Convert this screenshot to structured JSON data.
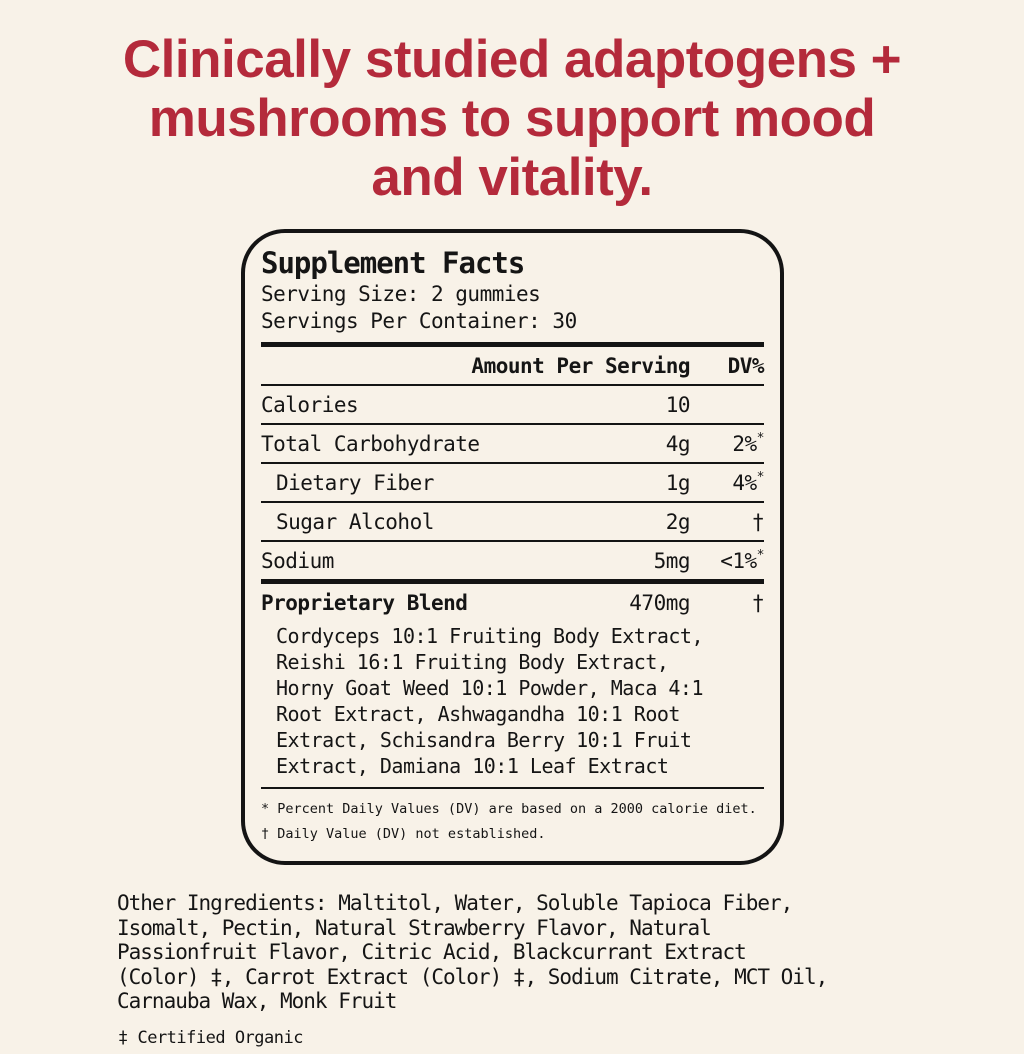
{
  "colors": {
    "background": "#f8f2e8",
    "headline_red": "#b42a3b",
    "text_black": "#151515"
  },
  "headline": {
    "line1": "Clinically studied adaptogens +",
    "line2": "mushrooms to support mood",
    "line3": "and vitality."
  },
  "panel": {
    "title": "Supplement Facts",
    "serving_size": "Serving Size: 2 gummies",
    "servings_per_container": "Servings Per Container: 30",
    "header": {
      "amount": "Amount Per Serving",
      "dv": "DV%"
    },
    "rows": [
      {
        "name": "Calories",
        "amount": "10",
        "dv": "",
        "dv_sup": ""
      },
      {
        "name": "Total Carbohydrate",
        "amount": "4g",
        "dv": "2%",
        "dv_sup": "*"
      },
      {
        "name": "Dietary Fiber",
        "amount": "1g",
        "dv": "4%",
        "dv_sup": "*"
      },
      {
        "name": "Sugar Alcohol",
        "amount": "2g",
        "dv": "†",
        "dv_sup": ""
      },
      {
        "name": "Sodium",
        "amount": "5mg",
        "dv": "<1%",
        "dv_sup": "*"
      }
    ],
    "blend": {
      "name": "Proprietary Blend",
      "amount": "470mg",
      "dv": "†",
      "lines": [
        "Cordyceps 10:1 Fruiting Body Extract,",
        "Reishi 16:1 Fruiting Body Extract,",
        "Horny Goat Weed 10:1 Powder, Maca 4:1",
        "Root Extract, Ashwagandha 10:1 Root",
        "Extract, Schisandra Berry 10:1 Fruit",
        "Extract, Damiana 10:1 Leaf Extract"
      ]
    },
    "footnotes": [
      "* Percent Daily Values (DV) are based on a 2000 calorie diet.",
      "† Daily Value (DV) not established."
    ]
  },
  "other_ingredients": {
    "lines": [
      "Other Ingredients: Maltitol, Water, Soluble Tapioca Fiber,",
      "Isomalt, Pectin, Natural Strawberry Flavor, Natural",
      "Passionfruit Flavor, Citric Acid, Blackcurrant Extract",
      "(Color) ‡, Carrot Extract (Color) ‡, Sodium Citrate, MCT Oil,",
      "Carnauba Wax, Monk Fruit"
    ]
  },
  "certified_organic": "‡ Certified Organic"
}
